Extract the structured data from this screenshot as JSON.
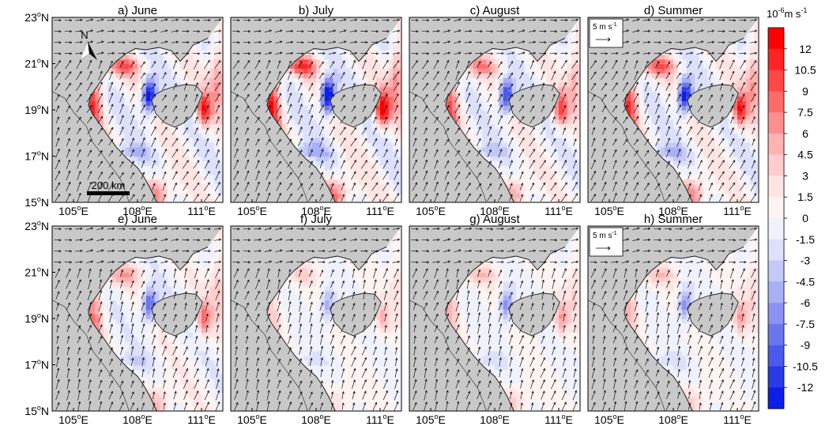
{
  "chart_data": {
    "type": "heatmap",
    "description_units": "10^-6 m s^-1 (shading); wind vectors in m s^-1",
    "colorbar": {
      "unit_base": "10",
      "unit_exp": "-6",
      "unit_rest": "m s",
      "unit_exp2": "-1",
      "ticks": [
        "12",
        "10.5",
        "9",
        "7.5",
        "6",
        "4.5",
        "3",
        "1.5",
        "0",
        "-1.5",
        "-3",
        "-4.5",
        "-6",
        "-7.5",
        "-9",
        "-10.5",
        "-12"
      ],
      "colors": [
        "#ff0000",
        "#ff2424",
        "#ff4747",
        "#ff6b6b",
        "#ff8e8e",
        "#ffb2b2",
        "#ffcdcd",
        "#ffe4e4",
        "#fdf4f2",
        "#eff1fd",
        "#dde0fb",
        "#c3c8f8",
        "#a8aff5",
        "#8a93f2",
        "#6b77ef",
        "#4b59ec",
        "#2a3bea",
        "#0d1fe6"
      ]
    },
    "x_ticks": [
      {
        "deg": "105",
        "suffix": "E"
      },
      {
        "deg": "108",
        "suffix": "E"
      },
      {
        "deg": "111",
        "suffix": "E"
      }
    ],
    "y_ticks": [
      {
        "deg": "23",
        "suffix": "N"
      },
      {
        "deg": "21",
        "suffix": "N"
      },
      {
        "deg": "19",
        "suffix": "N"
      },
      {
        "deg": "17",
        "suffix": "N"
      },
      {
        "deg": "15",
        "suffix": "N"
      }
    ],
    "panels": [
      {
        "title": "a) June",
        "row": 0,
        "col": 0,
        "strength": 1.0,
        "scale": "200 km",
        "north": "N"
      },
      {
        "title": "b) July",
        "row": 0,
        "col": 1,
        "strength": 1.15
      },
      {
        "title": "c) August",
        "row": 0,
        "col": 2,
        "strength": 0.85
      },
      {
        "title": "d) Summer",
        "row": 0,
        "col": 3,
        "strength": 1.0,
        "ref_label": "5 m s",
        "ref_exp": "-1"
      },
      {
        "title": "e) June",
        "row": 1,
        "col": 0,
        "strength": 0.7
      },
      {
        "title": "f) July",
        "row": 1,
        "col": 1,
        "strength": 0.4
      },
      {
        "title": "g) August",
        "row": 1,
        "col": 2,
        "strength": 0.5
      },
      {
        "title": "h) Summer",
        "row": 1,
        "col": 3,
        "strength": 0.5,
        "ref_label": "5 m s",
        "ref_exp": "-1"
      }
    ],
    "land_color": "#c8c8c8"
  }
}
